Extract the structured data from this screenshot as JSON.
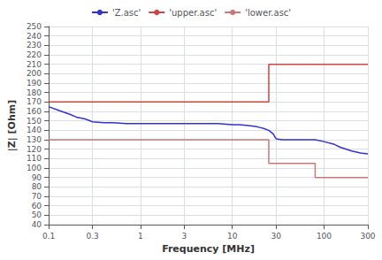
{
  "chart_data": {
    "type": "line",
    "xlabel": "Frequency [MHz]",
    "ylabel": "|Z| [Ohm]",
    "log": "x",
    "xlim": [
      0.1,
      300
    ],
    "xticks": [
      0.1,
      0.3,
      1,
      3,
      10,
      30,
      100,
      300
    ],
    "ylim": [
      40,
      250
    ],
    "yticks": [
      40,
      50,
      60,
      70,
      80,
      90,
      100,
      110,
      120,
      130,
      140,
      150,
      160,
      170,
      180,
      190,
      200,
      210,
      220,
      230,
      240,
      250
    ],
    "grid": true,
    "legend": "top",
    "series": [
      {
        "name": "'Z.asc'",
        "color": "#3333cc",
        "x": [
          0.1,
          0.13,
          0.17,
          0.2,
          0.25,
          0.3,
          0.4,
          0.5,
          0.7,
          1.0,
          1.5,
          2.0,
          3.0,
          5.0,
          7.0,
          10.0,
          12.0,
          15.0,
          18.0,
          20.0,
          22.0,
          25.0,
          28.0,
          30.0,
          35.0,
          40.0,
          50.0,
          60.0,
          70.0,
          80.0,
          100.0,
          130.0,
          150.0,
          200.0,
          250.0,
          300.0
        ],
        "values": [
          165,
          161,
          157,
          154,
          152,
          149,
          148,
          148,
          147,
          147,
          147,
          147,
          147,
          147,
          147,
          146,
          146,
          145,
          144,
          143,
          142,
          140,
          136,
          131,
          130,
          130,
          130,
          130,
          130,
          130,
          128,
          125,
          122,
          118,
          116,
          115
        ]
      },
      {
        "name": "'upper.asc'",
        "color": "#cc4444",
        "x": [
          0.1,
          25.0,
          25.0,
          300.0
        ],
        "values": [
          170,
          170,
          210,
          210
        ]
      },
      {
        "name": "'lower.asc'",
        "color": "#cc7777",
        "x": [
          0.1,
          25.0,
          25.0,
          80.0,
          80.0,
          300.0
        ],
        "values": [
          130,
          130,
          105,
          105,
          90,
          90
        ]
      }
    ]
  }
}
